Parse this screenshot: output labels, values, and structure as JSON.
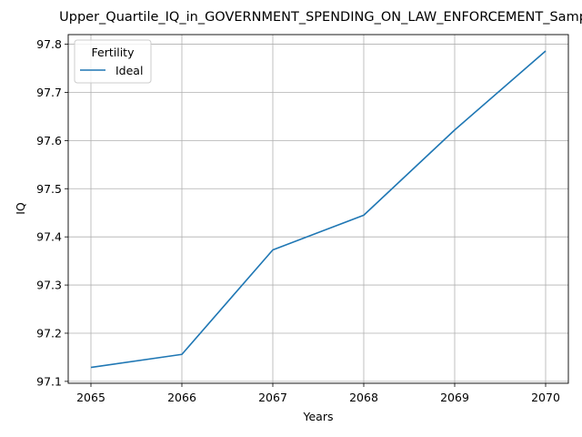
{
  "chart_data": {
    "type": "line",
    "title": "Upper_Quartile_IQ_in_GOVERNMENT_SPENDING_ON_LAW_ENFORCEMENT_Sample",
    "xlabel": "Years",
    "ylabel": "IQ",
    "x": [
      2065,
      2066,
      2067,
      2068,
      2069,
      2070
    ],
    "x_tick_labels": [
      "2065",
      "2066",
      "2067",
      "2068",
      "2069",
      "2070"
    ],
    "y_tick_values": [
      97.1,
      97.2,
      97.3,
      97.4,
      97.5,
      97.6,
      97.7,
      97.8
    ],
    "y_tick_labels": [
      "97.1",
      "97.2",
      "97.3",
      "97.4",
      "97.5",
      "97.6",
      "97.7",
      "97.8"
    ],
    "xlim": [
      2064.75,
      2070.25
    ],
    "ylim": [
      97.096,
      97.82
    ],
    "grid": true,
    "legend": {
      "title": "Fertility",
      "placement": "top-left"
    },
    "series": [
      {
        "name": "Ideal",
        "color": "#1f77b4",
        "values": [
          97.129,
          97.156,
          97.373,
          97.445,
          97.622,
          97.786
        ]
      }
    ]
  }
}
